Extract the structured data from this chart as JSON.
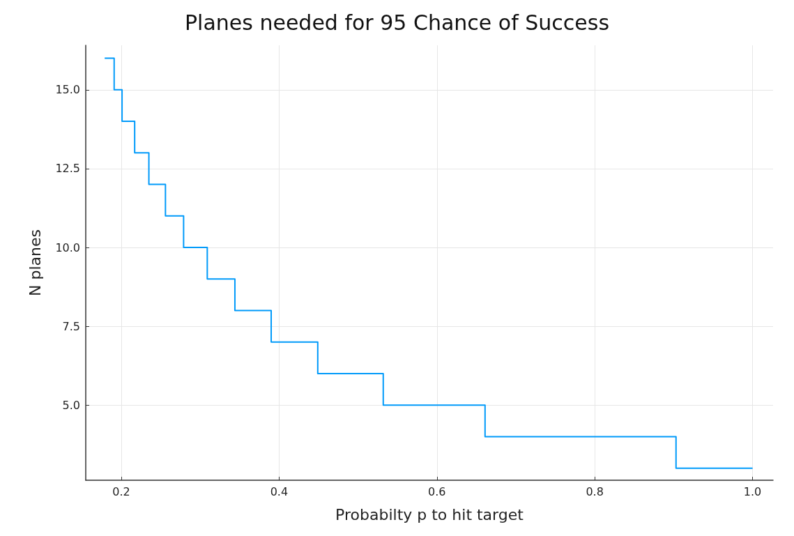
{
  "chart_data": {
    "type": "step",
    "title": "Planes needed for 95 Chance of Success",
    "xlabel": "Probabilty p to hit target",
    "ylabel": "N planes",
    "x": [
      0.179,
      0.191,
      0.201,
      0.217,
      0.235,
      0.256,
      0.279,
      0.309,
      0.344,
      0.39,
      0.449,
      0.532,
      0.661,
      0.903,
      1.0
    ],
    "series": [
      {
        "color": "#009afa",
        "values": [
          16,
          15,
          14,
          13,
          12,
          11,
          10,
          9,
          8,
          7,
          6,
          5,
          4,
          3,
          3
        ]
      }
    ],
    "xlim": [
      0.155,
      1.026
    ],
    "ylim": [
      2.62,
      16.41
    ],
    "xticks": [
      {
        "value": 0.2,
        "label": "0.2"
      },
      {
        "value": 0.4,
        "label": "0.4"
      },
      {
        "value": 0.6,
        "label": "0.6"
      },
      {
        "value": 0.8,
        "label": "0.8"
      },
      {
        "value": 1,
        "label": "1.0"
      }
    ],
    "yticks": [
      {
        "value": 5,
        "label": "5.0"
      },
      {
        "value": 7.5,
        "label": "7.5"
      },
      {
        "value": 10,
        "label": "10.0"
      },
      {
        "value": 12.5,
        "label": "12.5"
      },
      {
        "value": 15,
        "label": "15.0"
      }
    ],
    "grid": true
  }
}
